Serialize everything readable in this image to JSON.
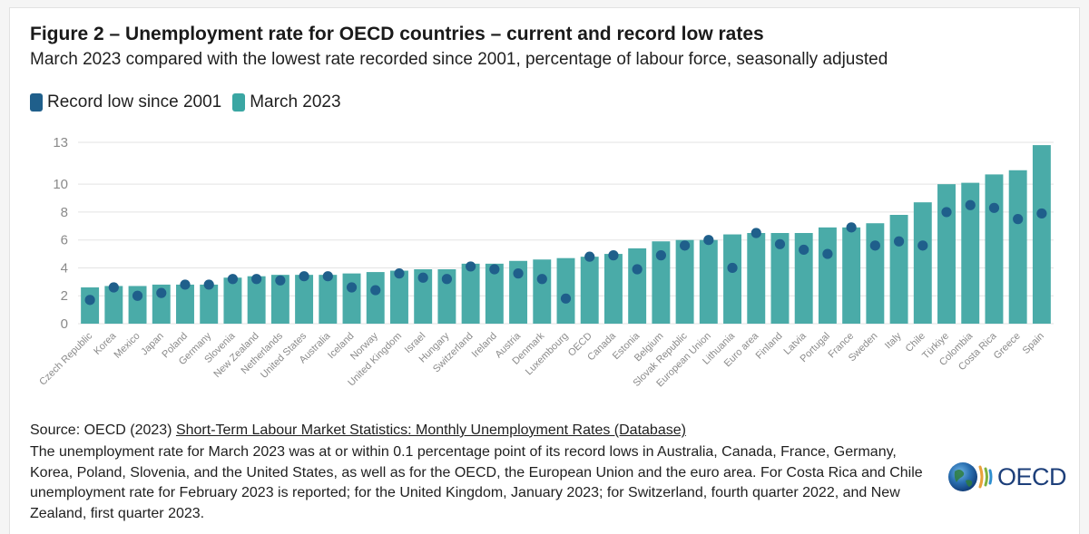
{
  "title": "Figure 2 – Unemployment rate for OECD countries – current and record low rates",
  "subtitle": "March 2023 compared with the lowest rate recorded since 2001, percentage of labour force, seasonally adjusted",
  "legend": [
    {
      "label": "Record low since 2001",
      "color": "#1f5f8b"
    },
    {
      "label": "March 2023",
      "color": "#3aa6a3"
    }
  ],
  "source": {
    "prefix": "Source: OECD (2023) ",
    "link_text": "Short-Term Labour Market Statistics: Monthly Unemployment Rates (Database)"
  },
  "note": "The unemployment rate for March 2023 was at or within 0.1 percentage point of its record lows in Australia, Canada, France, Germany, Korea, Poland, Slovenia, and the United States, as well as for the OECD, the European Union and the euro area. For Costa Rica and Chile unemployment rate for February 2023 is reported; for the United Kingdom, January 2023; for Switzerland, fourth quarter 2022, and New Zealand, first quarter 2023.",
  "logo": {
    "text": "OECD"
  },
  "colors": {
    "bar": "#4aaba8",
    "dot": "#1f5f8b",
    "grid": "#e3e3e3",
    "tick": "#8a8a8a"
  },
  "chart_data": {
    "type": "bar",
    "categories": [
      "Czech Republic",
      "Korea",
      "Mexico",
      "Japan",
      "Poland",
      "Germany",
      "Slovenia",
      "New Zealand",
      "Netherlands",
      "United States",
      "Australia",
      "Iceland",
      "Norway",
      "United Kingdom",
      "Israel",
      "Hungary",
      "Switzerland",
      "Ireland",
      "Austria",
      "Denmark",
      "Luxembourg",
      "OECD",
      "Canada",
      "Estonia",
      "Belgium",
      "Slovak Republic",
      "European Union",
      "Lithuania",
      "Euro area",
      "Finland",
      "Latvia",
      "Portugal",
      "France",
      "Sweden",
      "Italy",
      "Chile",
      "Türkiye",
      "Colombia",
      "Costa Rica",
      "Greece",
      "Spain"
    ],
    "series": [
      {
        "name": "March 2023",
        "type": "bar",
        "values": [
          2.6,
          2.7,
          2.7,
          2.8,
          2.8,
          2.8,
          3.3,
          3.4,
          3.5,
          3.5,
          3.5,
          3.6,
          3.7,
          3.8,
          3.9,
          3.9,
          4.3,
          4.3,
          4.5,
          4.6,
          4.7,
          4.8,
          5.0,
          5.4,
          5.9,
          6.0,
          6.0,
          6.4,
          6.5,
          6.5,
          6.5,
          6.9,
          6.9,
          7.2,
          7.8,
          8.7,
          10.0,
          10.1,
          10.7,
          11.0,
          12.8
        ]
      },
      {
        "name": "Record low since 2001",
        "type": "scatter",
        "values": [
          1.7,
          2.6,
          2.0,
          2.2,
          2.8,
          2.8,
          3.2,
          3.2,
          3.1,
          3.4,
          3.4,
          2.6,
          2.4,
          3.6,
          3.3,
          3.2,
          4.1,
          3.9,
          3.6,
          3.2,
          1.8,
          4.8,
          4.9,
          3.9,
          4.9,
          5.6,
          6.0,
          4.0,
          6.5,
          5.7,
          5.3,
          5.0,
          6.9,
          5.6,
          5.9,
          5.6,
          8.0,
          8.5,
          8.3,
          7.5,
          7.9
        ]
      }
    ],
    "y_ticks": [
      0,
      2,
      4,
      6,
      8,
      10,
      13
    ],
    "ylim": [
      0,
      13
    ],
    "grid": true,
    "legend_position": "top-left"
  }
}
